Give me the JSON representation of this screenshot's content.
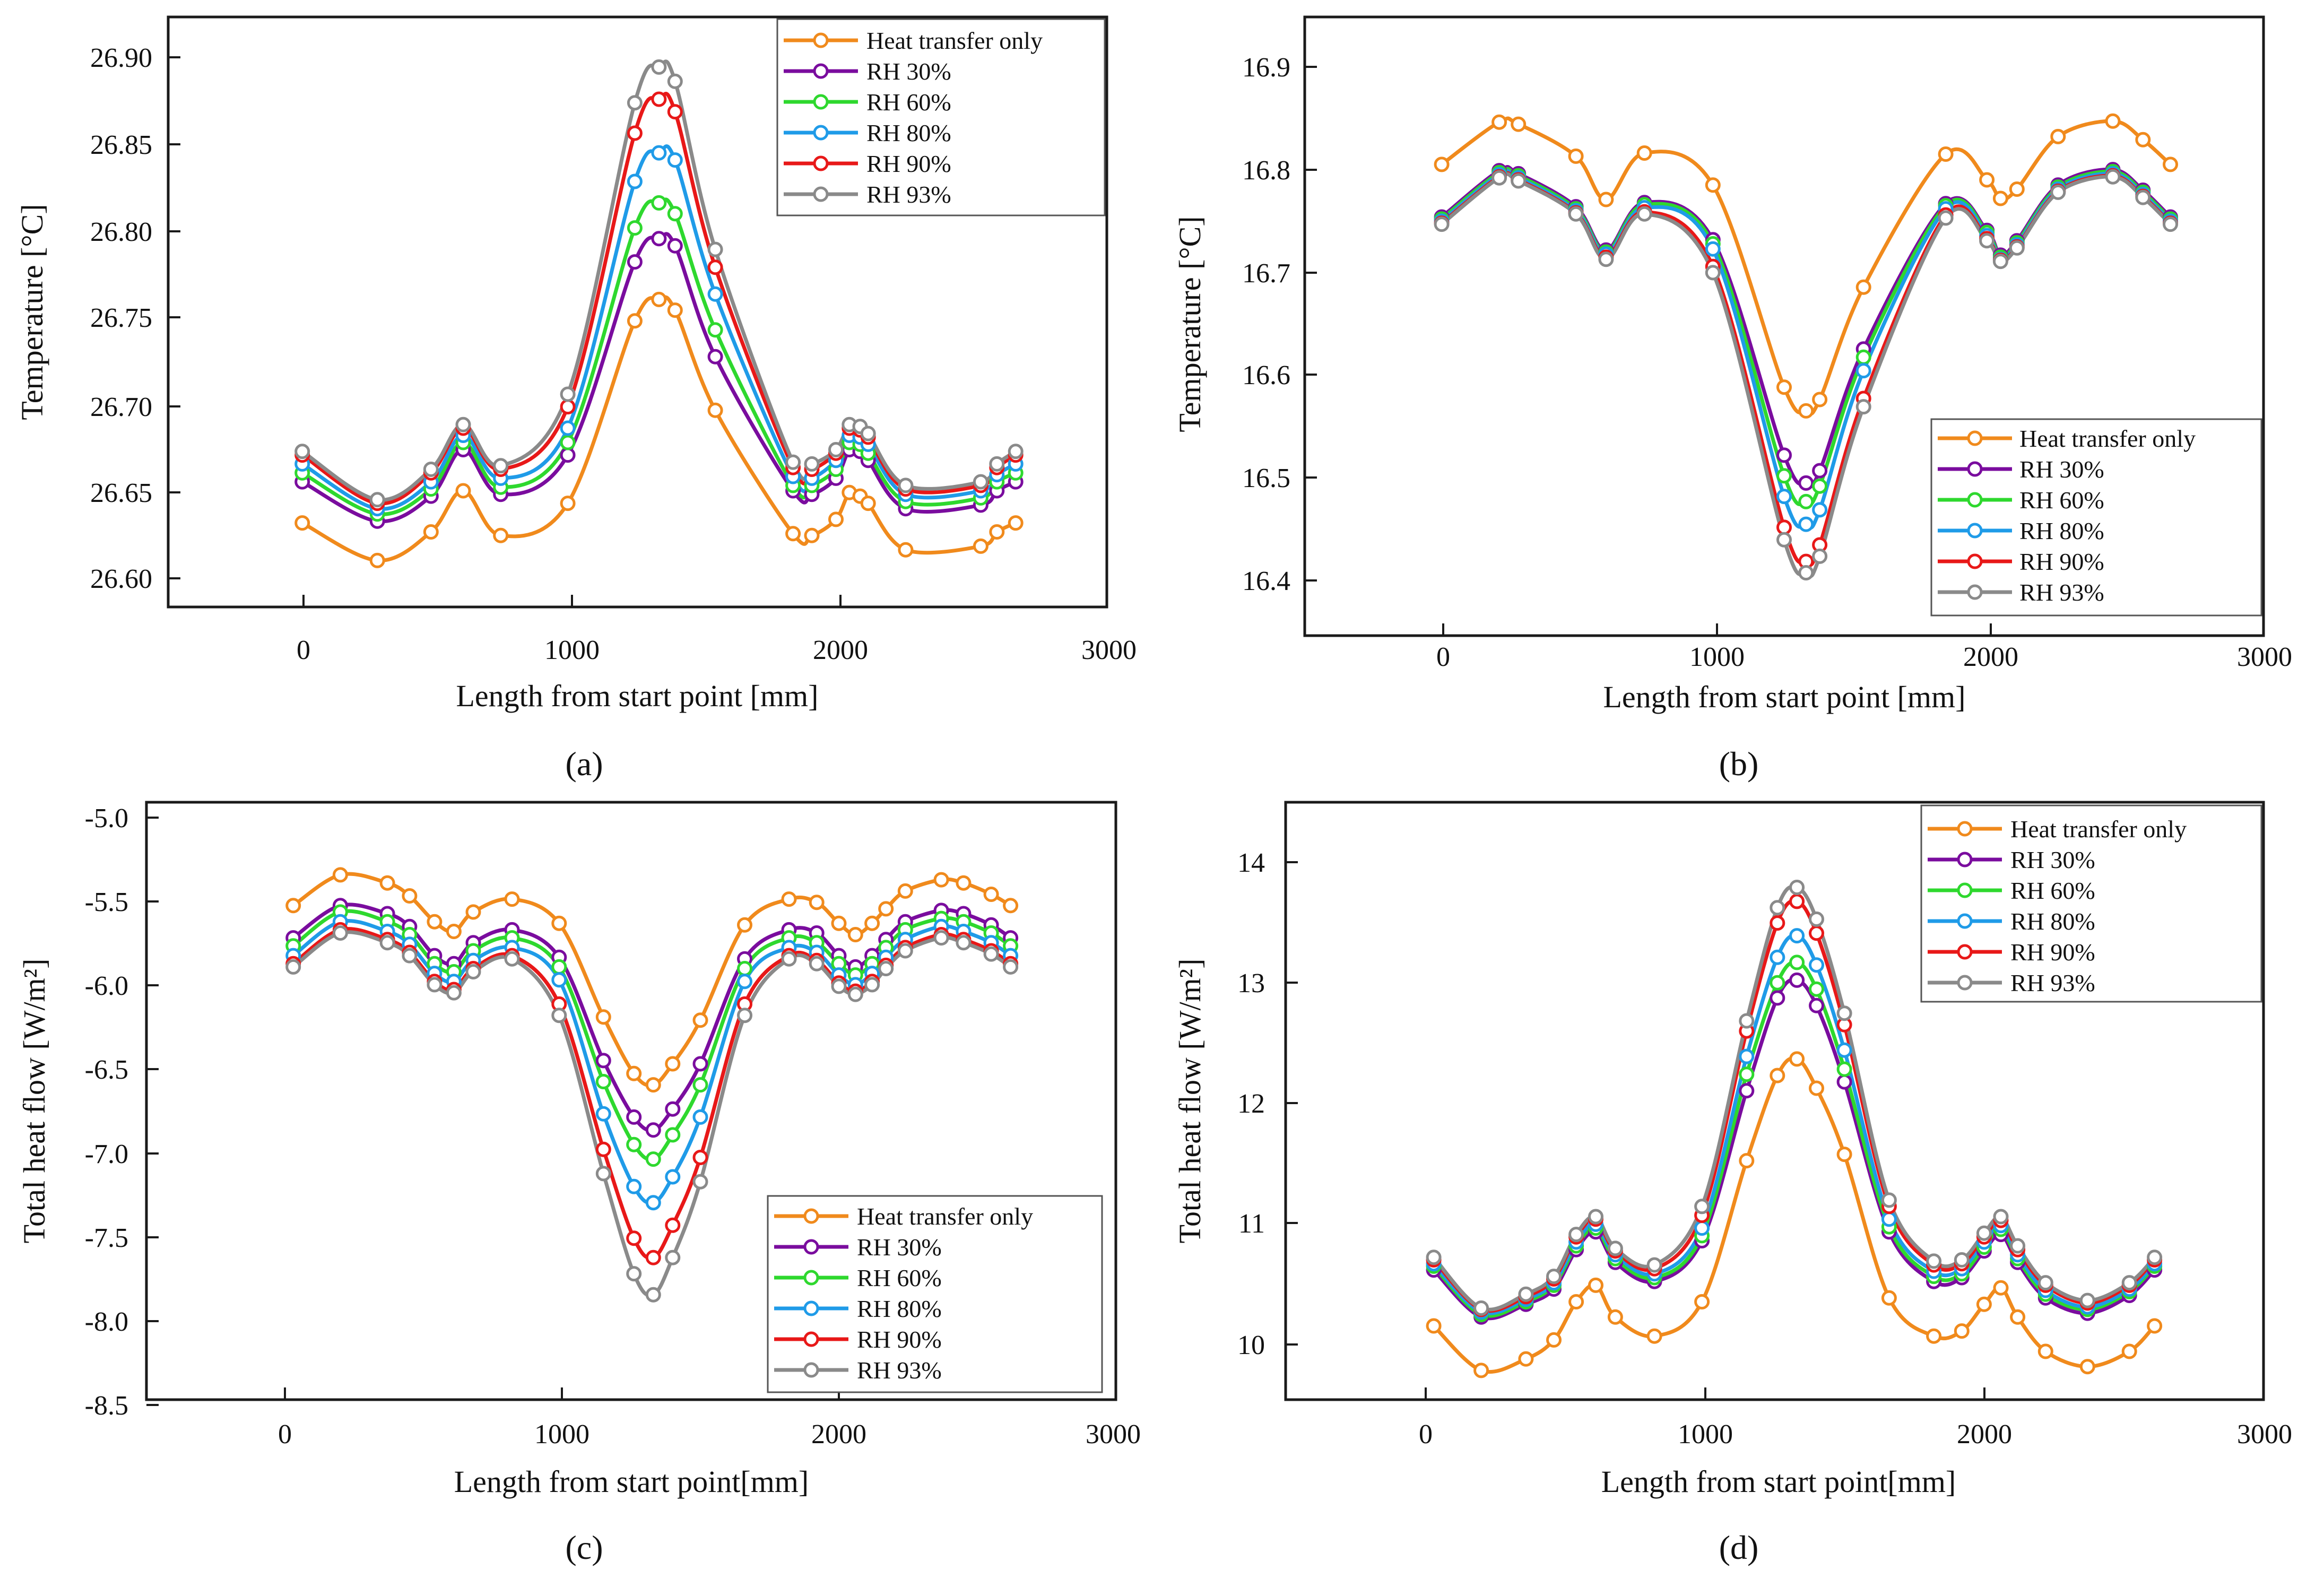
{
  "series_names": [
    "Heat transfer only",
    "RH 30%",
    "RH 60%",
    "RH 80%",
    "RH 90%",
    "RH 93%"
  ],
  "series_colors": [
    "#f08a1c",
    "#7a0c9e",
    "#2ed82e",
    "#1f9be8",
    "#e81818",
    "#8a8a8a"
  ],
  "chart_data": [
    {
      "type": "line",
      "panel_label": "(a)",
      "title": "",
      "xlabel": "Length from start point [mm]",
      "ylabel": "Temperature [°C]",
      "xlim": [
        -500,
        3000
      ],
      "ylim": [
        26.58,
        26.91
      ],
      "x_ticks": [
        0,
        1000,
        2000,
        3000
      ],
      "x_tick_labels": [
        "0",
        "1000",
        "2000",
        "3000"
      ],
      "y_ticks": [
        26.6,
        26.65,
        26.7,
        26.75,
        26.8,
        26.85,
        26.9
      ],
      "y_tick_labels": [
        "26.60",
        "26.65",
        "26.70",
        "26.75",
        "26.80",
        "26.85",
        "26.90"
      ],
      "legend_position": "top-right",
      "x": [
        0,
        280,
        480,
        600,
        740,
        990,
        1240,
        1330,
        1390,
        1540,
        1830,
        1900,
        1990,
        2040,
        2080,
        2110,
        2250,
        2530,
        2590,
        2660
      ],
      "series": [
        {
          "name": "Heat transfer only",
          "values": [
            26.627,
            26.606,
            26.622,
            26.645,
            26.62,
            26.638,
            26.74,
            26.752,
            26.746,
            26.69,
            26.621,
            26.62,
            26.629,
            26.644,
            26.642,
            26.638,
            26.612,
            26.614,
            26.622,
            26.627
          ]
        },
        {
          "name": "RH 30%",
          "values": [
            26.65,
            26.628,
            26.642,
            26.668,
            26.643,
            26.665,
            26.773,
            26.786,
            26.782,
            26.72,
            26.645,
            26.643,
            26.652,
            26.668,
            26.667,
            26.662,
            26.635,
            26.637,
            26.645,
            26.65
          ]
        },
        {
          "name": "RH 60%",
          "values": [
            26.655,
            26.632,
            26.646,
            26.672,
            26.647,
            26.672,
            26.792,
            26.806,
            26.8,
            26.735,
            26.648,
            26.648,
            26.657,
            26.672,
            26.671,
            26.666,
            26.639,
            26.641,
            26.65,
            26.655
          ]
        },
        {
          "name": "RH 80%",
          "values": [
            26.66,
            26.635,
            26.65,
            26.676,
            26.652,
            26.68,
            26.818,
            26.834,
            26.83,
            26.755,
            26.653,
            26.652,
            26.662,
            26.676,
            26.675,
            26.671,
            26.643,
            26.645,
            26.654,
            26.66
          ]
        },
        {
          "name": "RH 90%",
          "values": [
            26.665,
            26.638,
            26.655,
            26.68,
            26.657,
            26.692,
            26.845,
            26.864,
            26.857,
            26.77,
            26.658,
            26.657,
            26.666,
            26.68,
            26.679,
            26.675,
            26.646,
            26.648,
            26.658,
            26.665
          ]
        },
        {
          "name": "RH 93%",
          "values": [
            26.667,
            26.64,
            26.657,
            26.682,
            26.659,
            26.699,
            26.862,
            26.882,
            26.874,
            26.78,
            26.661,
            26.66,
            26.668,
            26.682,
            26.681,
            26.677,
            26.648,
            26.65,
            26.66,
            26.667
          ]
        }
      ]
    },
    {
      "type": "line",
      "panel_label": "(b)",
      "title": "",
      "xlabel": "Length from start point [mm]",
      "ylabel": "Temperature [°C]",
      "xlim": [
        -500,
        3000
      ],
      "ylim": [
        16.36,
        16.96
      ],
      "x_ticks": [
        0,
        1000,
        2000,
        3000
      ],
      "x_tick_labels": [
        "0",
        "1000",
        "2000",
        "3000"
      ],
      "y_ticks": [
        16.4,
        16.5,
        16.6,
        16.7,
        16.8,
        16.9
      ],
      "y_tick_labels": [
        "16.4",
        "16.5",
        "16.6",
        "16.7",
        "16.8",
        "16.9"
      ],
      "legend_position": "bottom-right",
      "x": [
        0,
        210,
        280,
        490,
        600,
        740,
        990,
        1250,
        1330,
        1380,
        1540,
        1840,
        1990,
        2040,
        2100,
        2250,
        2450,
        2560,
        2660
      ],
      "series": [
        {
          "name": "Heat transfer only",
          "values": [
            16.817,
            16.858,
            16.856,
            16.825,
            16.783,
            16.828,
            16.797,
            16.601,
            16.578,
            16.589,
            16.698,
            16.827,
            16.802,
            16.784,
            16.793,
            16.844,
            16.859,
            16.841,
            16.817
          ]
        },
        {
          "name": "RH 30%",
          "values": [
            16.766,
            16.811,
            16.808,
            16.776,
            16.734,
            16.78,
            16.744,
            16.535,
            16.508,
            16.52,
            16.638,
            16.779,
            16.753,
            16.729,
            16.743,
            16.797,
            16.812,
            16.792,
            16.766
          ]
        },
        {
          "name": "RH 60%",
          "values": [
            16.764,
            16.809,
            16.806,
            16.774,
            16.732,
            16.778,
            16.74,
            16.515,
            16.49,
            16.505,
            16.63,
            16.777,
            16.751,
            16.727,
            16.741,
            16.795,
            16.81,
            16.79,
            16.764
          ]
        },
        {
          "name": "RH 80%",
          "values": [
            16.762,
            16.807,
            16.804,
            16.772,
            16.73,
            16.775,
            16.735,
            16.495,
            16.468,
            16.482,
            16.617,
            16.774,
            16.748,
            16.725,
            16.739,
            16.793,
            16.808,
            16.788,
            16.762
          ]
        },
        {
          "name": "RH 90%",
          "values": [
            16.76,
            16.805,
            16.802,
            16.77,
            16.727,
            16.771,
            16.718,
            16.465,
            16.432,
            16.448,
            16.59,
            16.768,
            16.745,
            16.724,
            16.737,
            16.791,
            16.806,
            16.786,
            16.76
          ]
        },
        {
          "name": "RH 93%",
          "values": [
            16.759,
            16.804,
            16.801,
            16.769,
            16.725,
            16.769,
            16.712,
            16.453,
            16.421,
            16.437,
            16.582,
            16.765,
            16.743,
            16.723,
            16.736,
            16.79,
            16.805,
            16.785,
            16.759
          ]
        }
      ]
    },
    {
      "type": "line",
      "panel_label": "(c)",
      "title": "",
      "xlabel": "Length from start point[mm]",
      "ylabel": "Total heat flow [W/m²]",
      "xlim": [
        -500,
        3000
      ],
      "ylim": [
        -8.5,
        -4.8
      ],
      "x_ticks": [
        0,
        1000,
        2000,
        3000
      ],
      "x_tick_labels": [
        "0",
        "1000",
        "2000",
        "3000"
      ],
      "y_ticks": [
        -8.5,
        -8.0,
        -7.5,
        -7.0,
        -6.5,
        -6.0,
        -5.5,
        -5.0
      ],
      "y_tick_labels": [
        "-8.5",
        "-8.0",
        "-7.5",
        "-7.0",
        "-6.5",
        "-6.0",
        "-5.5",
        "-5.0"
      ],
      "legend_position": "bottom-right",
      "x": [
        30,
        200,
        370,
        450,
        540,
        610,
        680,
        820,
        990,
        1150,
        1260,
        1330,
        1400,
        1500,
        1660,
        1820,
        1920,
        2000,
        2060,
        2120,
        2170,
        2240,
        2370,
        2450,
        2550,
        2620
      ],
      "series": [
        {
          "name": "Heat transfer only",
          "values": [
            -5.44,
            -5.25,
            -5.3,
            -5.38,
            -5.54,
            -5.6,
            -5.48,
            -5.4,
            -5.55,
            -6.13,
            -6.48,
            -6.55,
            -6.42,
            -6.15,
            -5.56,
            -5.4,
            -5.42,
            -5.55,
            -5.62,
            -5.55,
            -5.46,
            -5.35,
            -5.28,
            -5.3,
            -5.37,
            -5.44
          ]
        },
        {
          "name": "RH 30%",
          "values": [
            -5.64,
            -5.44,
            -5.49,
            -5.57,
            -5.75,
            -5.8,
            -5.67,
            -5.59,
            -5.76,
            -6.4,
            -6.75,
            -6.83,
            -6.7,
            -6.42,
            -5.77,
            -5.59,
            -5.61,
            -5.75,
            -5.82,
            -5.75,
            -5.65,
            -5.54,
            -5.47,
            -5.49,
            -5.56,
            -5.64
          ]
        },
        {
          "name": "RH 60%",
          "values": [
            -5.69,
            -5.48,
            -5.54,
            -5.62,
            -5.8,
            -5.85,
            -5.72,
            -5.64,
            -5.82,
            -6.53,
            -6.92,
            -7.01,
            -6.86,
            -6.55,
            -5.83,
            -5.64,
            -5.67,
            -5.8,
            -5.87,
            -5.8,
            -5.7,
            -5.59,
            -5.52,
            -5.54,
            -5.61,
            -5.69
          ]
        },
        {
          "name": "RH 80%",
          "values": [
            -5.75,
            -5.54,
            -5.6,
            -5.68,
            -5.86,
            -5.91,
            -5.78,
            -5.7,
            -5.9,
            -6.73,
            -7.18,
            -7.28,
            -7.12,
            -6.75,
            -5.91,
            -5.7,
            -5.73,
            -5.87,
            -5.93,
            -5.86,
            -5.76,
            -5.65,
            -5.57,
            -5.6,
            -5.67,
            -5.75
          ]
        },
        {
          "name": "RH 90%",
          "values": [
            -5.8,
            -5.59,
            -5.65,
            -5.73,
            -5.91,
            -5.96,
            -5.83,
            -5.75,
            -6.05,
            -6.95,
            -7.5,
            -7.62,
            -7.42,
            -7.0,
            -6.05,
            -5.75,
            -5.78,
            -5.92,
            -5.97,
            -5.91,
            -5.81,
            -5.7,
            -5.62,
            -5.65,
            -5.72,
            -5.8
          ]
        },
        {
          "name": "RH 93%",
          "values": [
            -5.82,
            -5.61,
            -5.67,
            -5.75,
            -5.93,
            -5.98,
            -5.85,
            -5.77,
            -6.12,
            -7.1,
            -7.72,
            -7.85,
            -7.62,
            -7.15,
            -6.12,
            -5.77,
            -5.8,
            -5.94,
            -5.99,
            -5.93,
            -5.83,
            -5.72,
            -5.64,
            -5.67,
            -5.74,
            -5.82
          ]
        }
      ]
    },
    {
      "type": "line",
      "panel_label": "(d)",
      "title": "",
      "xlabel": "Length from start point[mm]",
      "ylabel": "Total heat flow [W/m²]",
      "xlim": [
        -500,
        3000
      ],
      "ylim": [
        9.7,
        14.4
      ],
      "x_ticks": [
        0,
        1000,
        2000,
        3000
      ],
      "x_tick_labels": [
        "0",
        "1000",
        "2000",
        "3000"
      ],
      "y_ticks": [
        10,
        11,
        12,
        13,
        14
      ],
      "y_tick_labels": [
        "10",
        "11",
        "12",
        "13",
        "14"
      ],
      "legend_position": "top-right",
      "x": [
        30,
        200,
        360,
        460,
        540,
        610,
        680,
        820,
        990,
        1150,
        1260,
        1330,
        1400,
        1500,
        1660,
        1820,
        1920,
        2000,
        2060,
        2120,
        2220,
        2370,
        2520,
        2610
      ],
      "series": [
        {
          "name": "Heat transfer only",
          "values": [
            10.28,
            9.93,
            10.02,
            10.17,
            10.47,
            10.6,
            10.35,
            10.2,
            10.47,
            11.58,
            12.25,
            12.38,
            12.15,
            11.63,
            10.5,
            10.2,
            10.24,
            10.45,
            10.58,
            10.35,
            10.08,
            9.96,
            10.08,
            10.28
          ]
        },
        {
          "name": "RH 30%",
          "values": [
            10.72,
            10.35,
            10.45,
            10.57,
            10.88,
            11.02,
            10.78,
            10.63,
            10.95,
            12.13,
            12.86,
            13.0,
            12.8,
            12.2,
            11.02,
            10.63,
            10.66,
            10.87,
            11.0,
            10.78,
            10.5,
            10.38,
            10.52,
            10.72
          ]
        },
        {
          "name": "RH 60%",
          "values": [
            10.75,
            10.37,
            10.47,
            10.6,
            10.91,
            11.05,
            10.81,
            10.66,
            10.99,
            12.26,
            12.98,
            13.14,
            12.93,
            12.3,
            11.06,
            10.67,
            10.69,
            10.9,
            11.04,
            10.81,
            10.53,
            10.41,
            10.55,
            10.75
          ]
        },
        {
          "name": "RH 80%",
          "values": [
            10.77,
            10.39,
            10.49,
            10.62,
            10.94,
            11.08,
            10.84,
            10.69,
            11.05,
            12.4,
            13.18,
            13.35,
            13.12,
            12.45,
            11.12,
            10.71,
            10.73,
            10.94,
            11.07,
            10.84,
            10.56,
            10.43,
            10.57,
            10.77
          ]
        },
        {
          "name": "RH 90%",
          "values": [
            10.8,
            10.41,
            10.51,
            10.65,
            10.98,
            11.12,
            10.87,
            10.73,
            11.15,
            12.6,
            13.45,
            13.62,
            13.37,
            12.65,
            11.22,
            10.76,
            10.77,
            10.98,
            11.11,
            10.88,
            10.6,
            10.46,
            10.6,
            10.8
          ]
        },
        {
          "name": "RH 93%",
          "values": [
            10.82,
            10.42,
            10.53,
            10.67,
            11.0,
            11.14,
            10.89,
            10.76,
            11.22,
            12.68,
            13.57,
            13.73,
            13.48,
            12.74,
            11.27,
            10.79,
            10.8,
            11.01,
            11.14,
            10.91,
            10.62,
            10.48,
            10.62,
            10.82
          ]
        }
      ]
    }
  ]
}
